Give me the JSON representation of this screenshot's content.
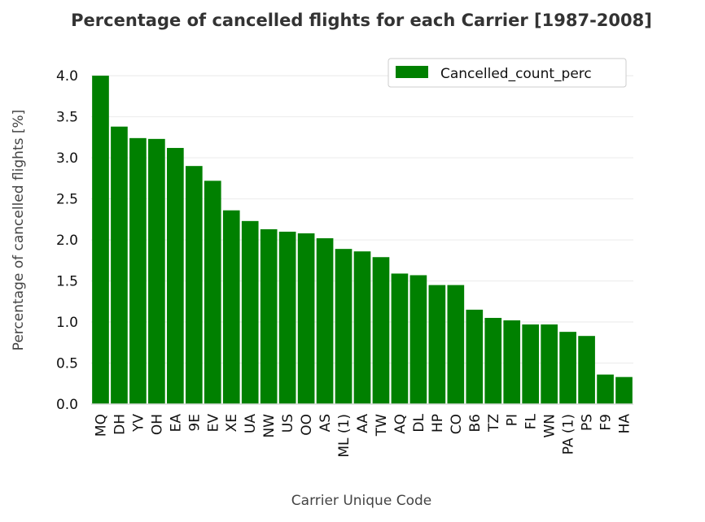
{
  "chart_data": {
    "type": "bar",
    "title": "Percentage of cancelled flights for each Carrier [1987-2008]",
    "xlabel": "Carrier Unique Code",
    "ylabel": "Percentage of cancelled flights [%]",
    "ylim": [
      0,
      4.1
    ],
    "yticks": [
      "0.0",
      "0.5",
      "1.0",
      "1.5",
      "2.0",
      "2.5",
      "3.0",
      "3.5",
      "4.0"
    ],
    "grid": true,
    "legend_position": "top-right",
    "bar_color": "#008000",
    "series": [
      {
        "name": "Cancelled_count_perc",
        "values": [
          4.0,
          3.38,
          3.24,
          3.23,
          3.12,
          2.9,
          2.72,
          2.36,
          2.23,
          2.13,
          2.1,
          2.08,
          2.02,
          1.89,
          1.86,
          1.79,
          1.59,
          1.57,
          1.45,
          1.45,
          1.15,
          1.05,
          1.02,
          0.97,
          0.97,
          0.88,
          0.83,
          0.36,
          0.33
        ]
      }
    ],
    "categories": [
      "MQ",
      "DH",
      "YV",
      "OH",
      "EA",
      "9E",
      "EV",
      "XE",
      "UA",
      "NW",
      "US",
      "OO",
      "AS",
      "ML (1)",
      "AA",
      "TW",
      "AQ",
      "DL",
      "HP",
      "CO",
      "B6",
      "TZ",
      "PI",
      "FL",
      "WN",
      "PA (1)",
      "PS",
      "F9",
      "HA"
    ]
  }
}
